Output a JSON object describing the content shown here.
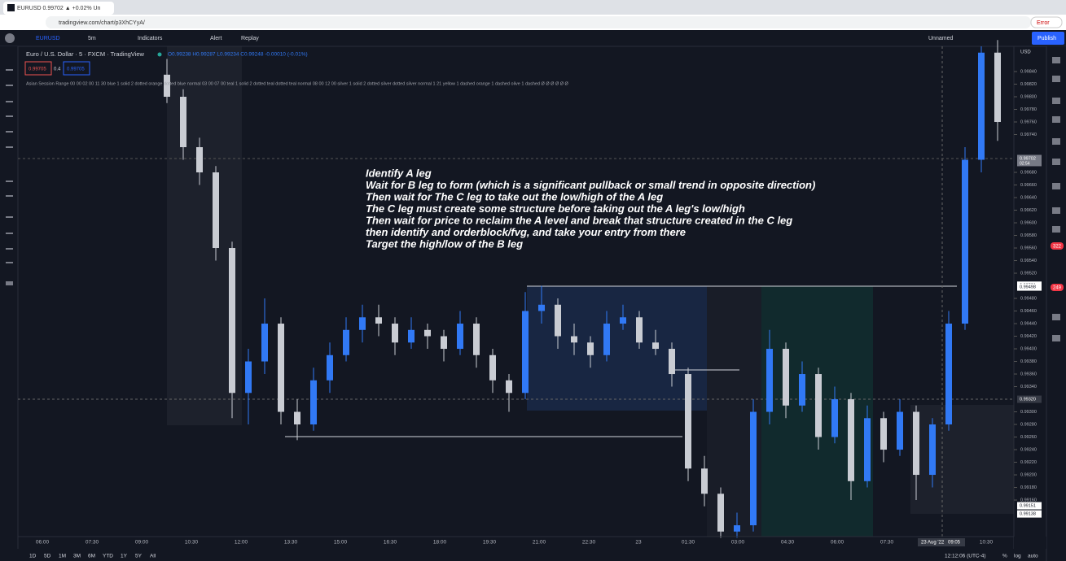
{
  "browser": {
    "tab": "EURUSD 0.99702 ▲ +0.02% Un",
    "url": "tradingview.com/chart/p3XhCYyA/",
    "error": "Error"
  },
  "toolbar": {
    "symbol": "EURUSD",
    "interval": "5m",
    "indicators": "Indicators",
    "alert": "Alert",
    "replay": "Replay",
    "layout": "Unnamed",
    "publish": "Publish"
  },
  "legend": {
    "title": "Euro / U.S. Dollar · 5 · FXCM · TradingView",
    "ohlc": "O0.99238 H0.99287 L0.99234 C0.99248 -0.00010 (-0.01%)",
    "sell": "0.99705",
    "spread": "0.4",
    "buy": "0.99705",
    "indicator": "Asian Session Range 00 00 02 00 11 30 blue 1 solid 2 dotted orange dotted blue normal 03 00 07 00 teal 1 solid 2 dotted teal dotted teal normal 08 00 12 00 silver 1 solid 2 dotted silver dotted silver normal 1 21 yellow 1 dashed orange 1 dashed olive 1 dashed Ø Ø Ø Ø Ø Ø"
  },
  "annotation": [
    "Identify A leg",
    "Wait for B leg to form (which is a significant pullback or small trend in opposite direction)",
    "Then wait for The C leg to take out the low/high of the A leg",
    "The C leg must create some structure before taking out the A leg's low/high",
    "Then wait for price to reclaim the A level and break that structure created in the C leg",
    "then identify and orderblock/fvg, and take your entry from there",
    "Target the high/low of the B leg"
  ],
  "chart_data": {
    "type": "candlestick",
    "currency": "USD",
    "up_color": "#3179f5",
    "down_color": "#c9ccd3",
    "ylim": [
      0.99102,
      0.9988
    ],
    "yticks": [
      {
        "value": 0.9916,
        "label": "0.99160"
      },
      {
        "value": 0.9918,
        "label": "0.99180"
      },
      {
        "value": 0.992,
        "label": "0.99200"
      },
      {
        "value": 0.9922,
        "label": "0.99220"
      },
      {
        "value": 0.9924,
        "label": "0.99240"
      },
      {
        "value": 0.9926,
        "label": "0.99260"
      },
      {
        "value": 0.9928,
        "label": "0.99280"
      },
      {
        "value": 0.993,
        "label": "0.99300"
      },
      {
        "value": 0.9934,
        "label": "0.99340"
      },
      {
        "value": 0.9936,
        "label": "0.99360"
      },
      {
        "value": 0.9938,
        "label": "0.99380"
      },
      {
        "value": 0.994,
        "label": "0.99400"
      },
      {
        "value": 0.9942,
        "label": "0.99420"
      },
      {
        "value": 0.9944,
        "label": "0.99440"
      },
      {
        "value": 0.9946,
        "label": "0.99460"
      },
      {
        "value": 0.9948,
        "label": "0.99480"
      },
      {
        "value": 0.9952,
        "label": "0.99520"
      },
      {
        "value": 0.9954,
        "label": "0.99540"
      },
      {
        "value": 0.9956,
        "label": "0.99560"
      },
      {
        "value": 0.9958,
        "label": "0.99580"
      },
      {
        "value": 0.996,
        "label": "0.99600"
      },
      {
        "value": 0.9962,
        "label": "0.99620"
      },
      {
        "value": 0.9964,
        "label": "0.99640"
      },
      {
        "value": 0.9966,
        "label": "0.99660"
      },
      {
        "value": 0.9968,
        "label": "0.99680"
      },
      {
        "value": 0.9974,
        "label": "0.99740"
      },
      {
        "value": 0.9976,
        "label": "0.99760"
      },
      {
        "value": 0.9978,
        "label": "0.99780"
      },
      {
        "value": 0.998,
        "label": "0.99800"
      },
      {
        "value": 0.9982,
        "label": "0.99820"
      },
      {
        "value": 0.9984,
        "label": "0.99840"
      }
    ],
    "price_labels": [
      {
        "value": 0.99702,
        "label": "0.99702",
        "sub": "02:54",
        "color": "#787b86"
      },
      {
        "value": 0.99501,
        "label": "0.99501",
        "color": "#ffffff"
      },
      {
        "value": 0.99498,
        "label": "0.99498",
        "color": "#ffffff"
      },
      {
        "value": 0.9932,
        "label": "0.99320",
        "color": "#363a45"
      },
      {
        "value": 0.99151,
        "label": "0.99151",
        "color": "#ffffff"
      },
      {
        "value": 0.99138,
        "label": "0.99138",
        "color": "#ffffff"
      }
    ],
    "xticks": [
      "06:00",
      "07:30",
      "09:00",
      "10:30",
      "12:00",
      "13:30",
      "15:00",
      "16:30",
      "18:00",
      "19:30",
      "21:00",
      "22:30",
      "23",
      "01:30",
      "03:00",
      "04:30",
      "06:00",
      "07:30",
      null,
      "10:30"
    ],
    "crosshair": {
      "date": "23 Aug '22",
      "time": "09:05"
    },
    "ohlc": [
      [
        0.99835,
        0.9986,
        0.9979,
        0.998
      ],
      [
        0.998,
        0.99812,
        0.997,
        0.9972
      ],
      [
        0.9972,
        0.99735,
        0.9966,
        0.9968
      ],
      [
        0.9968,
        0.9969,
        0.9954,
        0.9956
      ],
      [
        0.9956,
        0.9957,
        0.9929,
        0.9933
      ],
      [
        0.9933,
        0.994,
        0.9928,
        0.9938
      ],
      [
        0.9938,
        0.9948,
        0.9936,
        0.9944
      ],
      [
        0.9944,
        0.9945,
        0.9928,
        0.993
      ],
      [
        0.993,
        0.9932,
        0.99255,
        0.9928
      ],
      [
        0.9928,
        0.9937,
        0.9927,
        0.9935
      ],
      [
        0.9935,
        0.9941,
        0.9933,
        0.9939
      ],
      [
        0.9939,
        0.9945,
        0.9938,
        0.9943
      ],
      [
        0.9943,
        0.9947,
        0.9941,
        0.9945
      ],
      [
        0.9945,
        0.9947,
        0.9942,
        0.9944
      ],
      [
        0.9944,
        0.9945,
        0.9939,
        0.9941
      ],
      [
        0.9941,
        0.9945,
        0.994,
        0.9943
      ],
      [
        0.9943,
        0.9944,
        0.994,
        0.9942
      ],
      [
        0.9942,
        0.9943,
        0.9938,
        0.994
      ],
      [
        0.994,
        0.9946,
        0.9939,
        0.9944
      ],
      [
        0.9944,
        0.9945,
        0.9937,
        0.9939
      ],
      [
        0.9939,
        0.994,
        0.9933,
        0.9935
      ],
      [
        0.9935,
        0.9936,
        0.993,
        0.9933
      ],
      [
        0.9933,
        0.9949,
        0.9932,
        0.9946
      ],
      [
        0.9946,
        0.995,
        0.9944,
        0.9947
      ],
      [
        0.9947,
        0.9948,
        0.994,
        0.9942
      ],
      [
        0.9942,
        0.9944,
        0.9939,
        0.9941
      ],
      [
        0.9941,
        0.9942,
        0.9937,
        0.9939
      ],
      [
        0.9939,
        0.9946,
        0.9938,
        0.9944
      ],
      [
        0.9944,
        0.9947,
        0.9943,
        0.9945
      ],
      [
        0.9945,
        0.9946,
        0.994,
        0.9941
      ],
      [
        0.9941,
        0.9943,
        0.9939,
        0.994
      ],
      [
        0.994,
        0.9941,
        0.9934,
        0.9936
      ],
      [
        0.9936,
        0.9937,
        0.9919,
        0.9921
      ],
      [
        0.9921,
        0.9923,
        0.9915,
        0.9917
      ],
      [
        0.9917,
        0.9918,
        0.991,
        0.9911
      ],
      [
        0.9911,
        0.9914,
        0.991,
        0.9912
      ],
      [
        0.9912,
        0.9932,
        0.9911,
        0.993
      ],
      [
        0.993,
        0.9943,
        0.9928,
        0.994
      ],
      [
        0.994,
        0.9941,
        0.9929,
        0.9931
      ],
      [
        0.9931,
        0.9938,
        0.993,
        0.9936
      ],
      [
        0.9936,
        0.9937,
        0.9924,
        0.9926
      ],
      [
        0.9926,
        0.9934,
        0.9925,
        0.9932
      ],
      [
        0.9932,
        0.9933,
        0.9916,
        0.9919
      ],
      [
        0.9919,
        0.9931,
        0.9918,
        0.9929
      ],
      [
        0.9929,
        0.993,
        0.9922,
        0.9924
      ],
      [
        0.9924,
        0.9932,
        0.9923,
        0.993
      ],
      [
        0.993,
        0.9931,
        0.9916,
        0.992
      ],
      [
        0.992,
        0.9929,
        0.9918,
        0.9928
      ],
      [
        0.9928,
        0.9946,
        0.9927,
        0.9944
      ],
      [
        0.9944,
        0.9972,
        0.9943,
        0.997
      ],
      [
        0.997,
        0.9988,
        0.9968,
        0.9987
      ],
      [
        0.9987,
        0.9989,
        0.9973,
        0.9976
      ]
    ]
  },
  "bottom": {
    "ranges": [
      "1D",
      "5D",
      "1M",
      "3M",
      "6M",
      "YTD",
      "1Y",
      "5Y",
      "All"
    ],
    "clock": "12:12:06 (UTC-4)",
    "percent": "%",
    "log": "log",
    "auto": "auto"
  },
  "badges": [
    "322",
    "249"
  ]
}
